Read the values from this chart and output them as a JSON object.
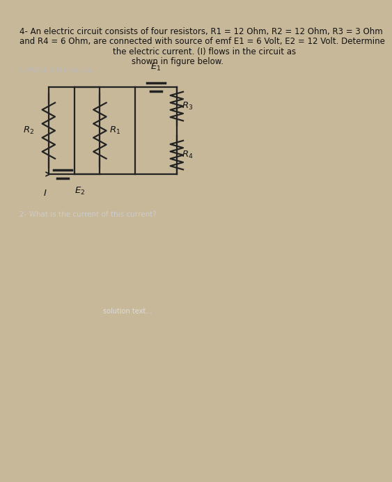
{
  "bg_color_outer": "#c8b89a",
  "paper_color": "#f2f0ee",
  "line_color": "#222222",
  "text_color": "#111111",
  "faded_color": "#aaaaaa",
  "title_line1": "4- An electric circuit consists of four resistors, R1 = 12 Ohm, R2 = 12 Ohm, R3 = 3 Ohm",
  "title_line2": "and R4 = 6 Ohm, are connected with source of emf E1 = 6 Volt, E2 = 12 Volt. Determine",
  "title_line3": "the electric current. (I) flows in the circuit as",
  "title_line4": "shown in figure below.",
  "faded_line1": "1) What is the equival...",
  "faded_line2": "2- What is the current of this current?",
  "font_size_title": 8.5,
  "font_size_label": 9.5
}
